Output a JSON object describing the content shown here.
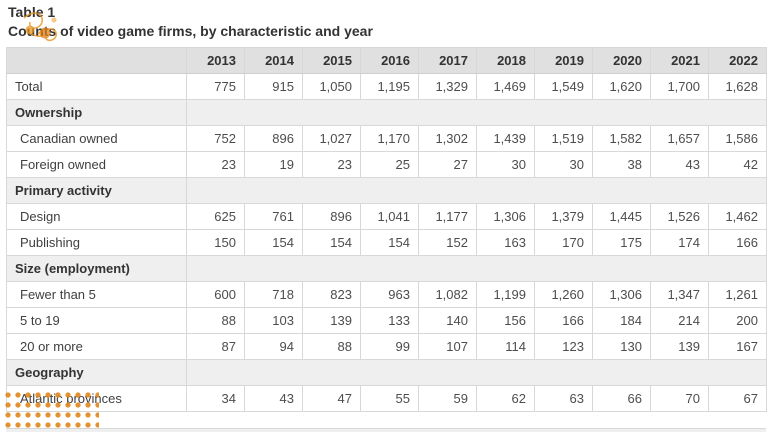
{
  "page": {
    "title": "Table 1",
    "subtitle": "Counts of video game firms, by characteristic and year"
  },
  "colors": {
    "header_bg": "#e0e0e0",
    "section_bg": "#efefef",
    "row_bg": "#ffffff",
    "border": "#d8d8d8",
    "text": "#333333",
    "number_text": "#4d4d4d",
    "watermark_orange": "#e2891f"
  },
  "chart_data": {
    "type": "table",
    "title": "Table 1",
    "subtitle": "Counts of video game firms, by characteristic and year",
    "columns": [
      "2013",
      "2014",
      "2015",
      "2016",
      "2017",
      "2018",
      "2019",
      "2020",
      "2021",
      "2022"
    ],
    "rows": [
      {
        "type": "data",
        "indent": false,
        "label": "Total",
        "values": [
          "775",
          "915",
          "1,050",
          "1,195",
          "1,329",
          "1,469",
          "1,549",
          "1,620",
          "1,700",
          "1,628"
        ]
      },
      {
        "type": "section",
        "label": "Ownership"
      },
      {
        "type": "data",
        "indent": true,
        "label": "Canadian owned",
        "values": [
          "752",
          "896",
          "1,027",
          "1,170",
          "1,302",
          "1,439",
          "1,519",
          "1,582",
          "1,657",
          "1,586"
        ]
      },
      {
        "type": "data",
        "indent": true,
        "label": "Foreign owned",
        "values": [
          "23",
          "19",
          "23",
          "25",
          "27",
          "30",
          "30",
          "38",
          "43",
          "42"
        ]
      },
      {
        "type": "section",
        "label": "Primary activity"
      },
      {
        "type": "data",
        "indent": true,
        "label": "Design",
        "values": [
          "625",
          "761",
          "896",
          "1,041",
          "1,177",
          "1,306",
          "1,379",
          "1,445",
          "1,526",
          "1,462"
        ]
      },
      {
        "type": "data",
        "indent": true,
        "label": "Publishing",
        "values": [
          "150",
          "154",
          "154",
          "154",
          "152",
          "163",
          "170",
          "175",
          "174",
          "166"
        ]
      },
      {
        "type": "section",
        "label": "Size (employment)"
      },
      {
        "type": "data",
        "indent": true,
        "label": "Fewer than 5",
        "values": [
          "600",
          "718",
          "823",
          "963",
          "1,082",
          "1,199",
          "1,260",
          "1,306",
          "1,347",
          "1,261"
        ]
      },
      {
        "type": "data",
        "indent": true,
        "label": "5 to 19",
        "values": [
          "88",
          "103",
          "139",
          "133",
          "140",
          "156",
          "166",
          "184",
          "214",
          "200"
        ]
      },
      {
        "type": "data",
        "indent": true,
        "label": "20 or more",
        "values": [
          "87",
          "94",
          "88",
          "99",
          "107",
          "114",
          "123",
          "130",
          "139",
          "167"
        ]
      },
      {
        "type": "section",
        "label": "Geography"
      },
      {
        "type": "data",
        "indent": true,
        "label": "Atlantic provinces",
        "values": [
          "34",
          "43",
          "47",
          "55",
          "59",
          "62",
          "63",
          "66",
          "70",
          "67"
        ]
      }
    ]
  }
}
